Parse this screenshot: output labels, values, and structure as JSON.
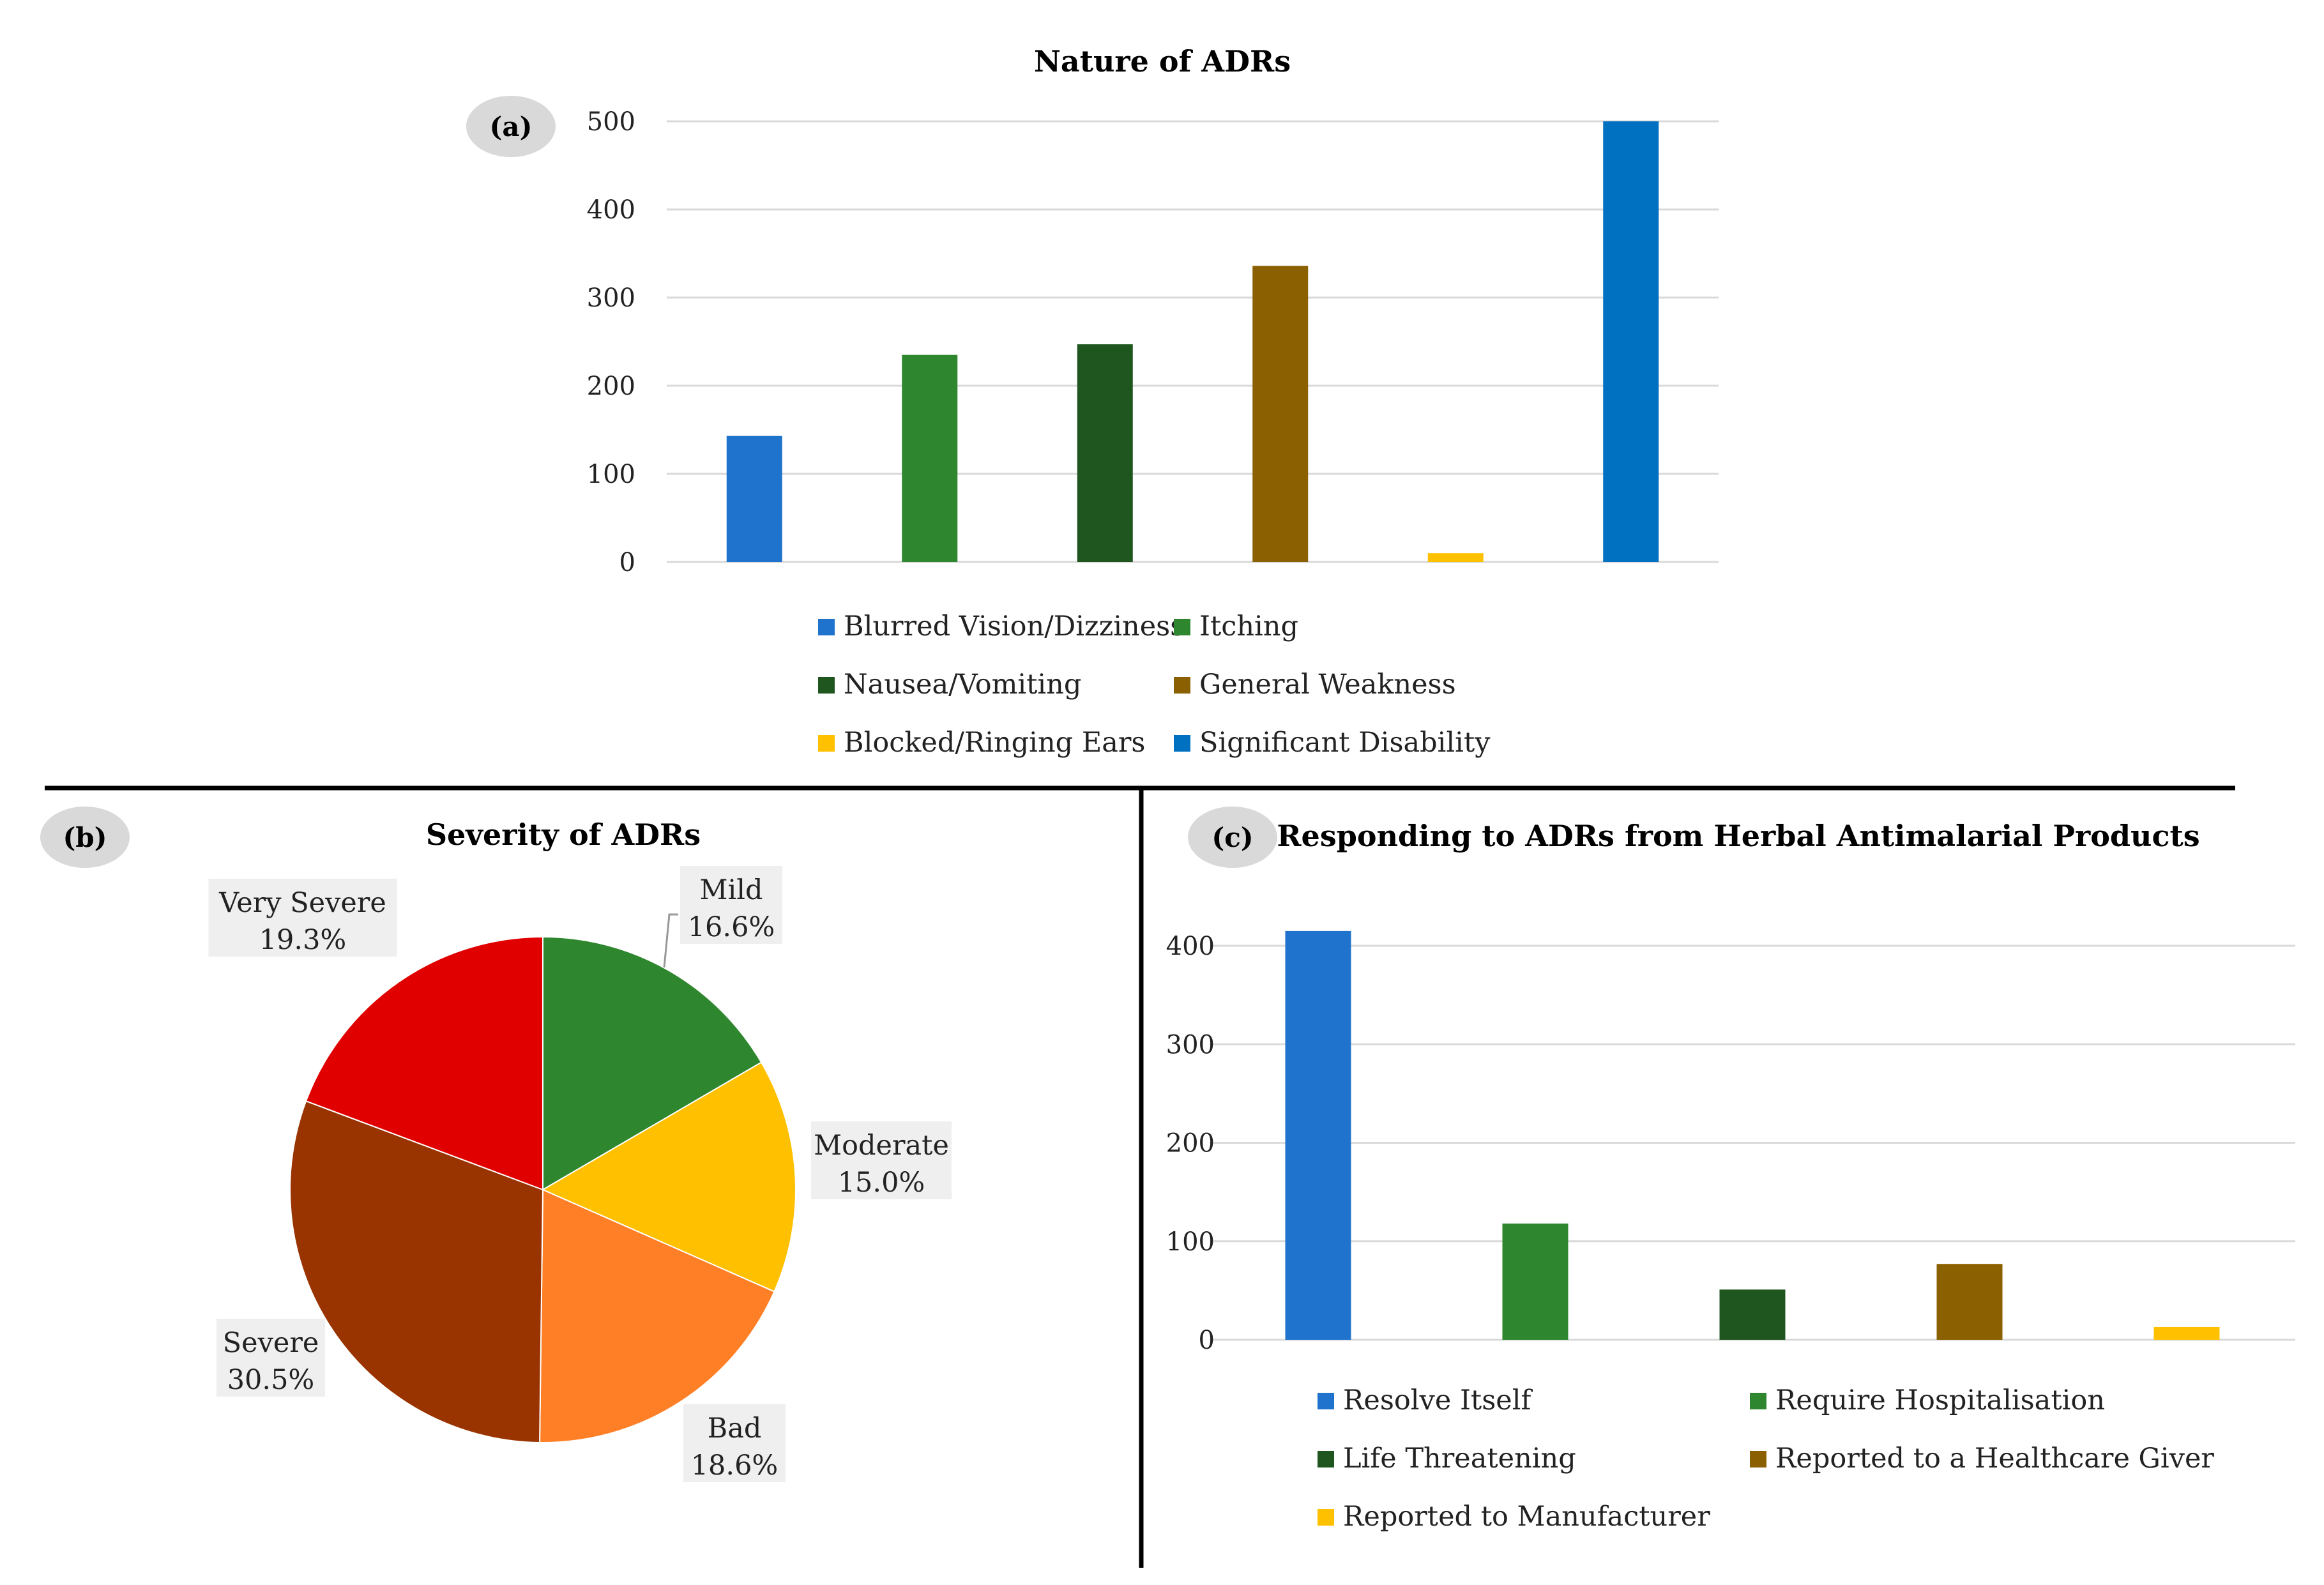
{
  "chart_data": [
    {
      "id": "a",
      "panel_label": "(a)",
      "type": "bar",
      "title": "Nature of ADRs",
      "categories": [
        "Blurred Vision/Dizziness",
        "Itching",
        "Nausea/Vomiting",
        "General Weakness",
        "Blocked/Ringing Ears",
        "Significant Disability"
      ],
      "values": [
        143,
        235,
        247,
        336,
        10,
        500
      ],
      "colors": [
        "#1F73CC",
        "#2E862E",
        "#1F5620",
        "#8B6000",
        "#FFC000",
        "#0070C0"
      ],
      "yticks": [
        0,
        100,
        200,
        300,
        400,
        500
      ],
      "ylim": [
        0,
        500
      ],
      "xlabel": "",
      "ylabel": "",
      "grid": true,
      "legend": "bottom"
    },
    {
      "id": "b",
      "panel_label": "(b)",
      "type": "pie",
      "title": "Severity of ADRs",
      "labels": [
        "Mild",
        "Moderate",
        "Bad",
        "Severe",
        "Very Severe"
      ],
      "values": [
        16.6,
        15.0,
        18.6,
        30.5,
        19.3
      ],
      "value_labels": [
        "16.6%",
        "15.0%",
        "18.6%",
        "30.5%",
        "19.3%"
      ],
      "colors": [
        "#2E862E",
        "#FFC000",
        "#FF7F27",
        "#993300",
        "#E00000"
      ]
    },
    {
      "id": "c",
      "panel_label": "(c)",
      "type": "bar",
      "title": "Responding to ADRs from Herbal Antimalarial Products",
      "categories": [
        "Resolve Itself",
        "Require Hospitalisation",
        "Life Threatening",
        "Reported to a Healthcare Giver",
        "Reported to Manufacturer"
      ],
      "values": [
        415,
        118,
        51,
        77,
        13
      ],
      "colors": [
        "#1F73CC",
        "#2E862E",
        "#1F5620",
        "#8B6000",
        "#FFC000"
      ],
      "yticks": [
        0,
        100,
        200,
        300,
        400
      ],
      "ylim": [
        0,
        400
      ],
      "xlabel": "",
      "ylabel": "",
      "grid": true,
      "legend": "bottom"
    }
  ]
}
